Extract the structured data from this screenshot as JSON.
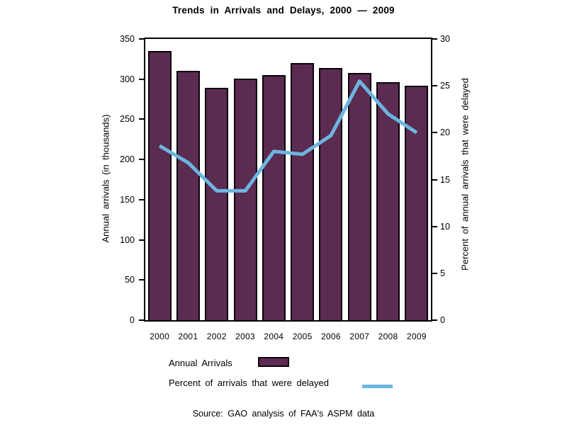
{
  "title": "Trends in Arrivals and Delays, 2000 — 2009",
  "source": "Source: GAO analysis of FAA's ASPM data",
  "colors": {
    "bar_fill": "#5B2B51",
    "bar_border": "#0b0309",
    "line": "#6CB5E0",
    "axis": "#000000"
  },
  "legend": {
    "items": [
      {
        "label": "Annual Arrivals",
        "swatch": "bar",
        "color": "#5B2B51"
      },
      {
        "label": "Percent of arrivals that were delayed",
        "swatch": "line",
        "color": "#6CB5E0"
      }
    ]
  },
  "chart_data": {
    "type": "bar",
    "combo": "bar+line",
    "title": "Trends in Arrivals and Delays, 2000 — 2009",
    "categories": [
      "2000",
      "2001",
      "2002",
      "2003",
      "2004",
      "2005",
      "2006",
      "2007",
      "2008",
      "2009"
    ],
    "series": [
      {
        "name": "Annual Arrivals",
        "type": "bar",
        "axis": "left",
        "color": "#5B2B51",
        "values": [
          335,
          310,
          289,
          301,
          305,
          320,
          314,
          308,
          296,
          292
        ]
      },
      {
        "name": "Percent of arrivals that were delayed",
        "type": "line",
        "axis": "right",
        "color": "#6CB5E0",
        "values": [
          18.6,
          16.8,
          13.8,
          13.8,
          18.0,
          17.7,
          19.7,
          25.5,
          22.0,
          20.0
        ]
      }
    ],
    "left_axis": {
      "label": "Annual arrivals (in thousands)",
      "min": 0,
      "max": 350,
      "tick_step": 50,
      "ticks": [
        0,
        50,
        100,
        150,
        200,
        250,
        300,
        350
      ]
    },
    "right_axis": {
      "label": "Percent of annual arrivals that were delayed",
      "min": 0,
      "max": 30,
      "tick_step": 5,
      "ticks": [
        0,
        5,
        10,
        15,
        20,
        25,
        30
      ]
    },
    "grid": "off",
    "legend_position": "below"
  }
}
